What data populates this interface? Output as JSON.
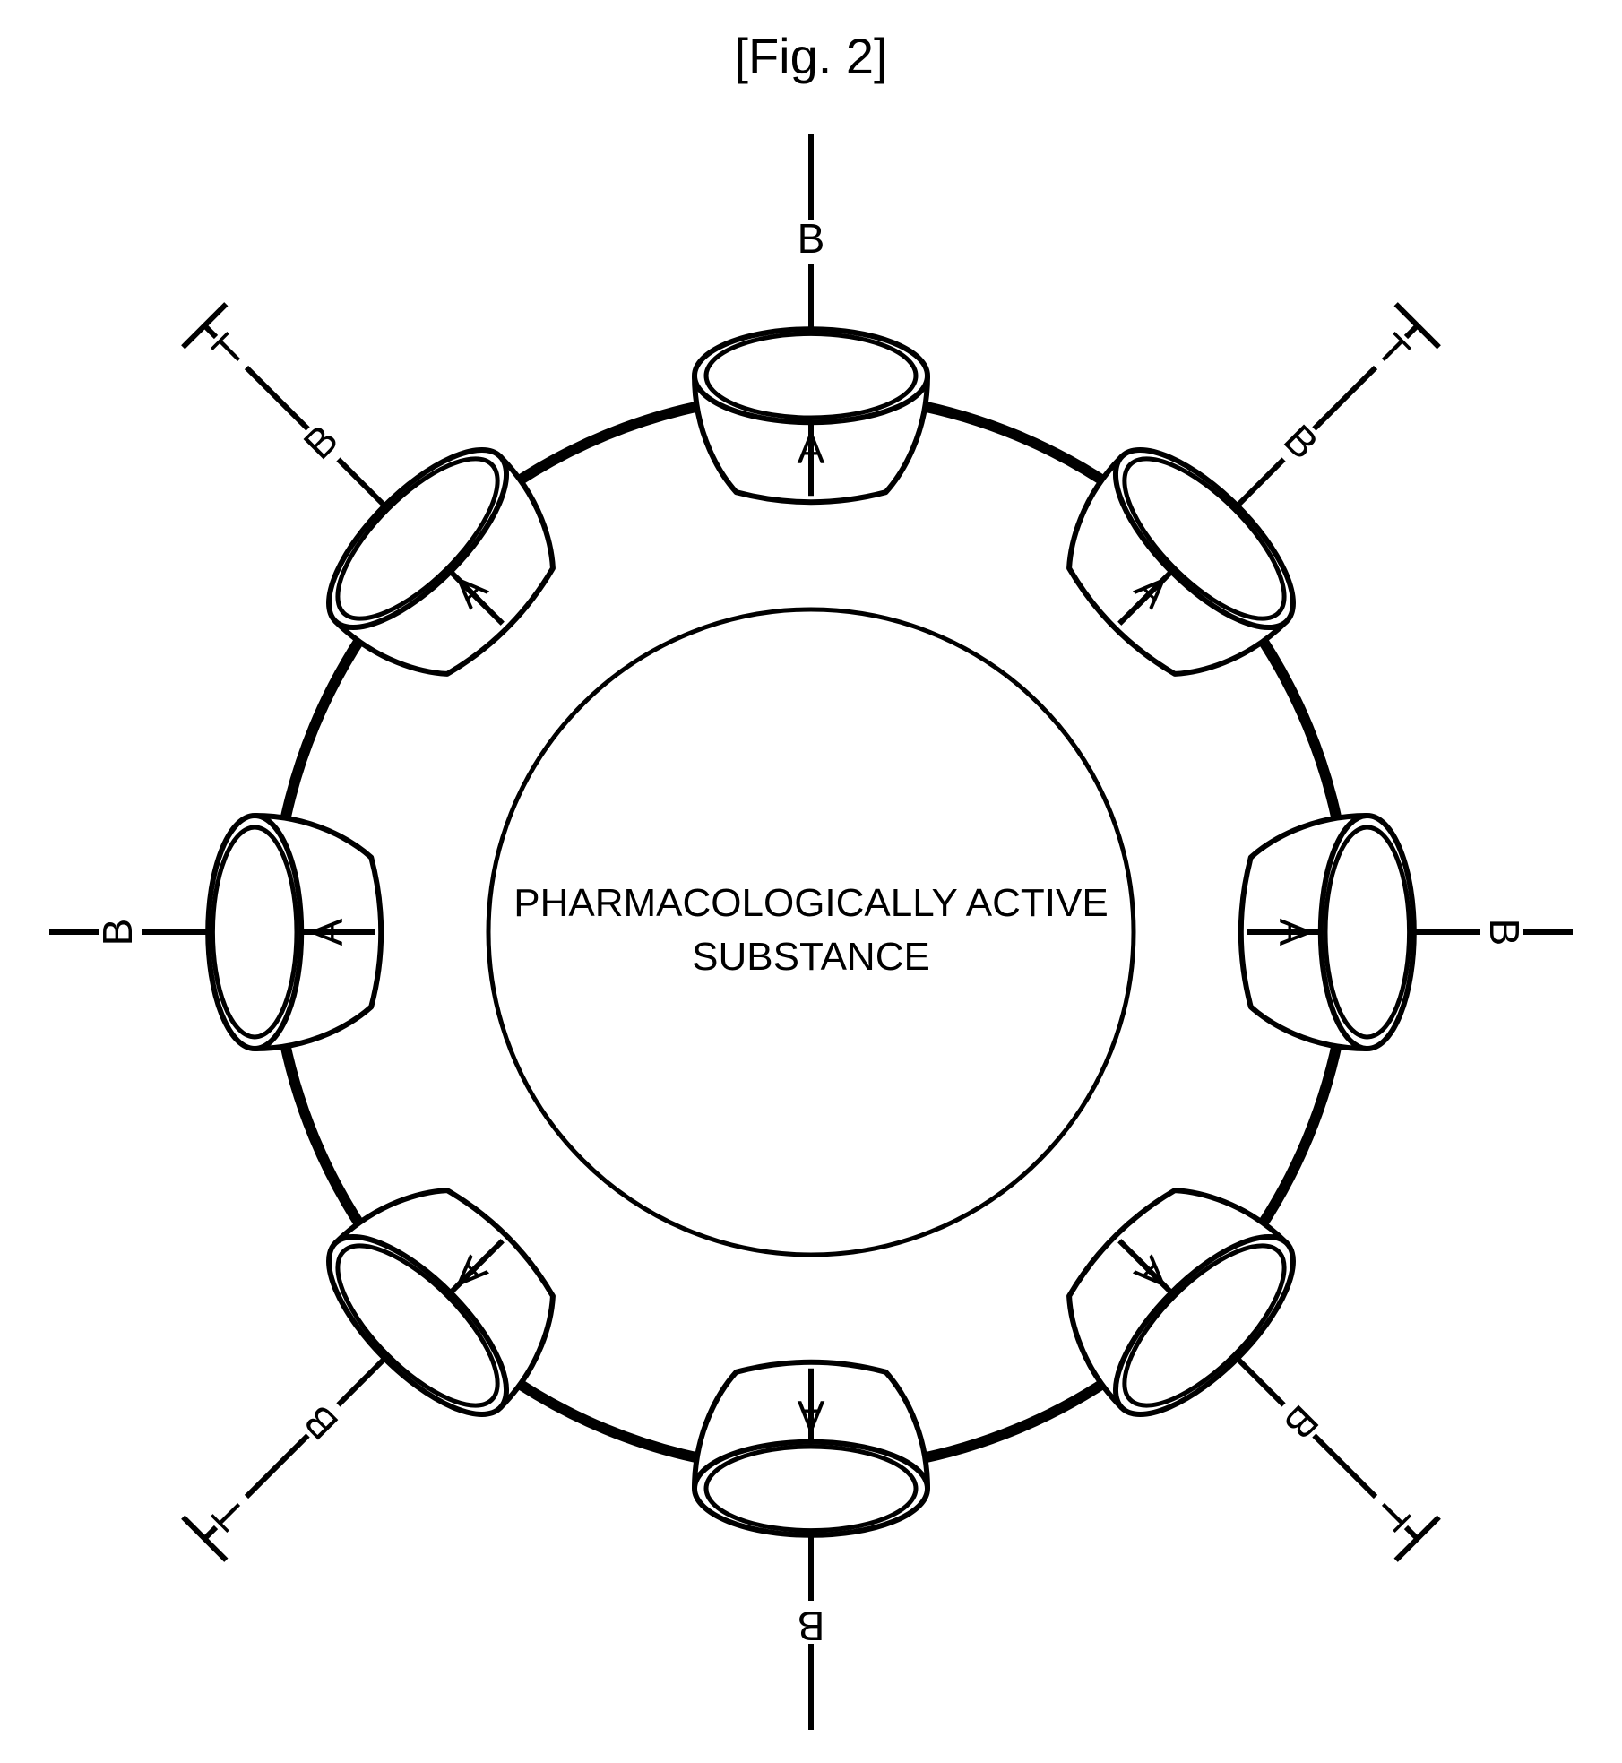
{
  "figure_label": "[Fig. 2]",
  "center_text_line1": "PHARMACOLOGICALLY ACTIVE",
  "center_text_line2": "SUBSTANCE",
  "node_labels": {
    "inner": "A",
    "mid": "B",
    "outer": "T"
  },
  "diagram": {
    "type": "radial-schematic",
    "outer_circle_radius": 600,
    "inner_circle_radius": 360,
    "pod_count": 8,
    "pod_radial_center": 600,
    "pod_width": 260,
    "pod_body_height": 130,
    "pod_ellipse_ry": 52,
    "pod_inner_ellipse_scale": 0.9,
    "label_A_radius": 535,
    "rim_radius": 690,
    "label_B_radius": 770,
    "label_T_radius": 915,
    "arc_inset_deg": 10,
    "colors": {
      "background": "#ffffff",
      "stroke": "#000000",
      "arc_stroke": "#000000",
      "text": "#000000"
    },
    "stroke_widths": {
      "inner_circle": 5,
      "arc": 12,
      "pod_outline": 6,
      "pod_inner_ellipse": 5,
      "connector": 6,
      "t_cap": 6
    },
    "fonts": {
      "title_size": 56,
      "center_size": 44,
      "label_size": 46,
      "label_weight": "normal"
    }
  }
}
